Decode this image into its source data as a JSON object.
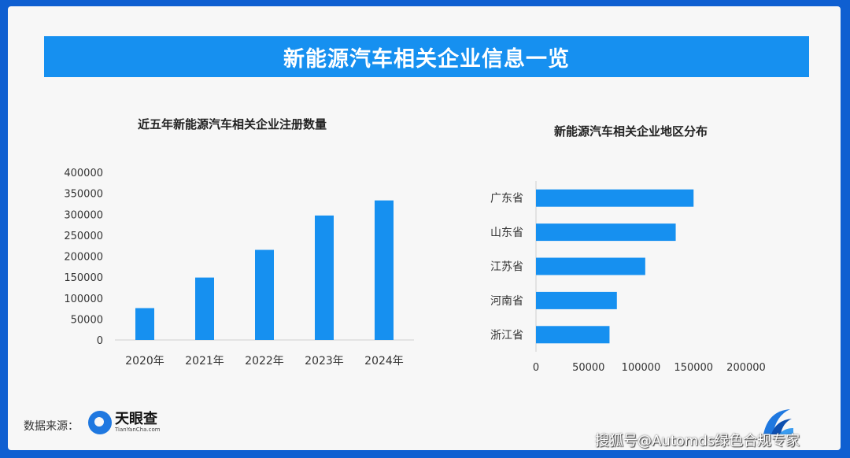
{
  "page": {
    "title": "新能源汽车相关企业信息一览",
    "source_label": "数据来源：",
    "source_brand": "天眼查",
    "source_brand_sub": "TianYanCha.com",
    "watermark": "搜狐号@Automds绿色合规专家"
  },
  "colors": {
    "banner": "#1690f0",
    "bar": "#1690f0",
    "frame": "#0f5fd1",
    "card": "#f7f7f7"
  },
  "chart_data": [
    {
      "type": "bar",
      "title": "近五年新能源汽车相关企业注册数量",
      "categories": [
        "2020年",
        "2021年",
        "2022年",
        "2023年",
        "2024年"
      ],
      "values": [
        76000,
        149000,
        215000,
        297000,
        333000
      ],
      "ylim": [
        0,
        400000
      ],
      "yticks": [
        "0",
        "50000",
        "100000",
        "150000",
        "200000",
        "250000",
        "300000",
        "350000",
        "400000"
      ],
      "grid": false,
      "xlabel": "",
      "ylabel": ""
    },
    {
      "type": "bar",
      "orientation": "horizontal",
      "title": "新能源汽车相关企业地区分布",
      "categories": [
        "广东省",
        "山东省",
        "江苏省",
        "河南省",
        "浙江省"
      ],
      "values": [
        150000,
        133000,
        104000,
        77000,
        70000
      ],
      "xlim": [
        0,
        200000
      ],
      "xticks": [
        "0",
        "50000",
        "100000",
        "150000",
        "200000"
      ],
      "grid": false,
      "xlabel": "",
      "ylabel": ""
    }
  ]
}
